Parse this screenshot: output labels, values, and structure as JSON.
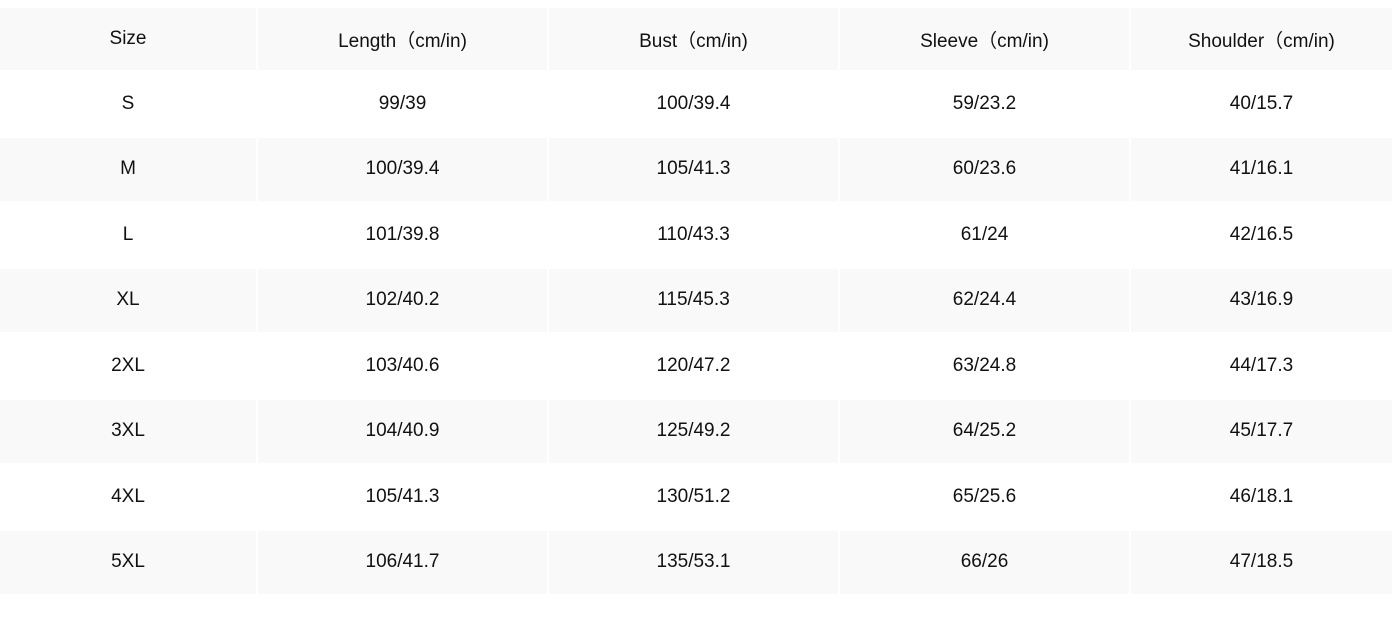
{
  "table": {
    "headers": [
      "Size",
      "Length（cm/in)",
      "Bust（cm/in)",
      "Sleeve（cm/in)",
      "Shoulder（cm/in)"
    ],
    "rows": [
      [
        "S",
        "99/39",
        "100/39.4",
        "59/23.2",
        "40/15.7"
      ],
      [
        "M",
        "100/39.4",
        "105/41.3",
        "60/23.6",
        "41/16.1"
      ],
      [
        "L",
        "101/39.8",
        "110/43.3",
        "61/24",
        "42/16.5"
      ],
      [
        "XL",
        "102/40.2",
        "115/45.3",
        "62/24.4",
        "43/16.9"
      ],
      [
        "2XL",
        "103/40.6",
        "120/47.2",
        "63/24.8",
        "44/17.3"
      ],
      [
        "3XL",
        "104/40.9",
        "125/49.2",
        "64/25.2",
        "45/17.7"
      ],
      [
        "4XL",
        "105/41.3",
        "130/51.2",
        "65/25.6",
        "46/18.1"
      ],
      [
        "5XL",
        "106/41.7",
        "135/53.1",
        "66/26",
        "47/18.5"
      ]
    ]
  },
  "colors": {
    "shaded_row": "#f9f9f9",
    "background": "#ffffff",
    "text": "#111111"
  }
}
